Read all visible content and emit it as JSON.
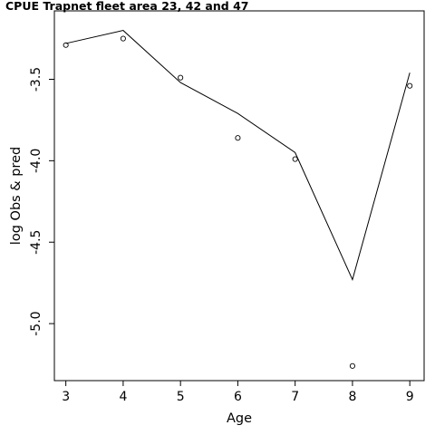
{
  "chart_data": {
    "type": "line",
    "title": "CPUE Trapnet fleet area 23, 42 and 47",
    "xlabel": "Age",
    "ylabel": "log Obs & pred",
    "x": [
      3,
      4,
      5,
      6,
      7,
      8,
      9
    ],
    "xticks": [
      "3",
      "4",
      "5",
      "6",
      "7",
      "8",
      "9"
    ],
    "yticks": [
      -3.5,
      -4.0,
      -4.5,
      -5.0
    ],
    "ytick_labels": [
      "-3.5",
      "-4.0",
      "-4.5",
      "-5.0"
    ],
    "xlim": [
      2.8,
      9.25
    ],
    "ylim": [
      -5.35,
      -3.08
    ],
    "grid": false,
    "series": [
      {
        "kind": "line",
        "values": [
          -3.28,
          -3.2,
          -3.52,
          -3.71,
          -3.95,
          -4.73,
          -3.46
        ]
      },
      {
        "kind": "points",
        "values": [
          -3.29,
          -3.25,
          -3.49,
          -3.86,
          -3.99,
          -5.26,
          -3.54
        ]
      }
    ]
  }
}
